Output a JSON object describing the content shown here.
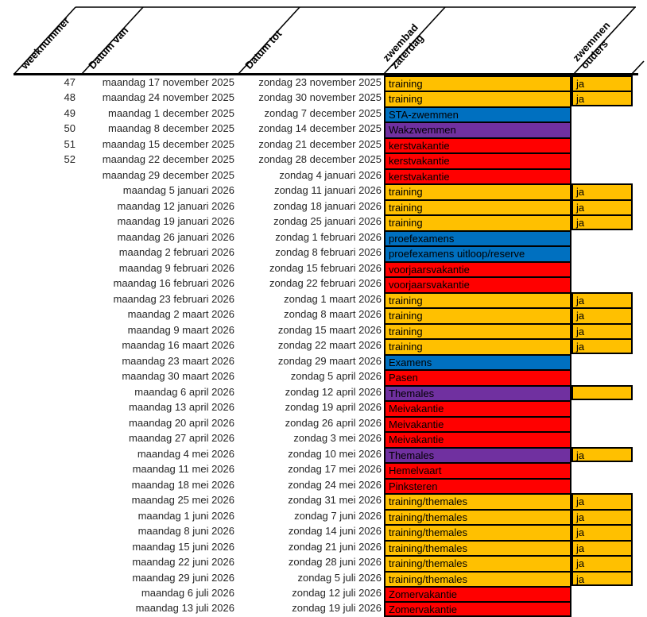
{
  "header": {
    "columns": [
      {
        "label": "weeknummer"
      },
      {
        "label": "Datum van"
      },
      {
        "label": "Datum tot"
      },
      {
        "label": "zwembad\nzaterdag"
      },
      {
        "label": "zwemmen\nouders"
      }
    ]
  },
  "colors": {
    "orange": "#FFC000",
    "blue": "#0070C0",
    "purple": "#7030A0",
    "red": "#FF0000"
  },
  "rows": [
    {
      "week": "47",
      "van": "maandag 17 november 2025",
      "tot": "zondag 23 november 2025",
      "activity": "training",
      "color": "orange",
      "ouders": "ja"
    },
    {
      "week": "48",
      "van": "maandag 24 november 2025",
      "tot": "zondag 30 november 2025",
      "activity": "training",
      "color": "orange",
      "ouders": "ja"
    },
    {
      "week": "49",
      "van": "maandag 1 december 2025",
      "tot": "zondag 7 december 2025",
      "activity": "STA-zwemmen",
      "color": "blue"
    },
    {
      "week": "50",
      "van": "maandag 8 december 2025",
      "tot": "zondag 14 december 2025",
      "activity": "Wakzwemmen",
      "color": "purple"
    },
    {
      "week": "51",
      "van": "maandag 15 december 2025",
      "tot": "zondag 21 december 2025",
      "activity": "kerstvakantie",
      "color": "red"
    },
    {
      "week": "52",
      "van": "maandag 22 december 2025",
      "tot": "zondag 28 december 2025",
      "activity": "kerstvakantie",
      "color": "red"
    },
    {
      "week": "",
      "van": "maandag 29 december 2025",
      "tot": "zondag 4 januari 2026",
      "activity": "kerstvakantie",
      "color": "red"
    },
    {
      "week": "",
      "van": "maandag 5 januari 2026",
      "tot": "zondag 11 januari 2026",
      "activity": "training",
      "color": "orange",
      "ouders": "ja"
    },
    {
      "week": "",
      "van": "maandag 12 januari 2026",
      "tot": "zondag 18 januari 2026",
      "activity": "training",
      "color": "orange",
      "ouders": "ja"
    },
    {
      "week": "",
      "van": "maandag 19 januari 2026",
      "tot": "zondag 25 januari 2026",
      "activity": "training",
      "color": "orange",
      "ouders": "ja"
    },
    {
      "week": "",
      "van": "maandag 26 januari 2026",
      "tot": "zondag 1 februari 2026",
      "activity": "proefexamens",
      "color": "blue"
    },
    {
      "week": "",
      "van": "maandag 2 februari 2026",
      "tot": "zondag 8 februari 2026",
      "activity": "proefexamens uitloop/reserve",
      "color": "blue"
    },
    {
      "week": "",
      "van": "maandag 9 februari 2026",
      "tot": "zondag 15 februari 2026",
      "activity": "voorjaarsvakantie",
      "color": "red"
    },
    {
      "week": "",
      "van": "maandag 16 februari 2026",
      "tot": "zondag 22 februari 2026",
      "activity": "voorjaarsvakantie",
      "color": "red"
    },
    {
      "week": "",
      "van": "maandag 23 februari 2026",
      "tot": "zondag 1 maart 2026",
      "activity": "training",
      "color": "orange",
      "ouders": "ja"
    },
    {
      "week": "",
      "van": "maandag 2 maart 2026",
      "tot": "zondag 8 maart 2026",
      "activity": "training",
      "color": "orange",
      "ouders": "ja"
    },
    {
      "week": "",
      "van": "maandag 9 maart 2026",
      "tot": "zondag 15 maart 2026",
      "activity": "training",
      "color": "orange",
      "ouders": "ja"
    },
    {
      "week": "",
      "van": "maandag 16 maart 2026",
      "tot": "zondag 22 maart 2026",
      "activity": "training",
      "color": "orange",
      "ouders": "ja"
    },
    {
      "week": "",
      "van": "maandag 23 maart 2026",
      "tot": "zondag 29 maart 2026",
      "activity": "Examens",
      "color": "blue"
    },
    {
      "week": "",
      "van": "maandag 30 maart 2026",
      "tot": "zondag 5 april 2026",
      "activity": "Pasen",
      "color": "red"
    },
    {
      "week": "",
      "van": "maandag 6 april 2026",
      "tot": "zondag 12 april 2026",
      "activity": "Themales",
      "color": "purple",
      "ouders": ""
    },
    {
      "week": "",
      "van": "maandag 13 april 2026",
      "tot": "zondag 19 april 2026",
      "activity": "Meivakantie",
      "color": "red"
    },
    {
      "week": "",
      "van": "maandag 20 april 2026",
      "tot": "zondag 26 april 2026",
      "activity": "Meivakantie",
      "color": "red"
    },
    {
      "week": "",
      "van": "maandag 27 april 2026",
      "tot": "zondag 3 mei 2026",
      "activity": "Meivakantie",
      "color": "red"
    },
    {
      "week": "",
      "van": "maandag 4 mei 2026",
      "tot": "zondag 10 mei 2026",
      "activity": "Themales",
      "color": "purple",
      "ouders": "ja"
    },
    {
      "week": "",
      "van": "maandag 11 mei 2026",
      "tot": "zondag 17 mei 2026",
      "activity": "Hemelvaart",
      "color": "red"
    },
    {
      "week": "",
      "van": "maandag 18 mei 2026",
      "tot": "zondag 24 mei 2026",
      "activity": "Pinksteren",
      "color": "red"
    },
    {
      "week": "",
      "van": "maandag 25 mei 2026",
      "tot": "zondag 31 mei 2026",
      "activity": "training/themales",
      "color": "orange",
      "ouders": "ja"
    },
    {
      "week": "",
      "van": "maandag 1 juni 2026",
      "tot": "zondag 7 juni 2026",
      "activity": "training/themales",
      "color": "orange",
      "ouders": "ja"
    },
    {
      "week": "",
      "van": "maandag 8 juni 2026",
      "tot": "zondag 14 juni 2026",
      "activity": "training/themales",
      "color": "orange",
      "ouders": "ja"
    },
    {
      "week": "",
      "van": "maandag 15 juni 2026",
      "tot": "zondag 21 juni 2026",
      "activity": "training/themales",
      "color": "orange",
      "ouders": "ja"
    },
    {
      "week": "",
      "van": "maandag 22 juni 2026",
      "tot": "zondag 28 juni 2026",
      "activity": "training/themales",
      "color": "orange",
      "ouders": "ja"
    },
    {
      "week": "",
      "van": "maandag 29 juni 2026",
      "tot": "zondag 5 juli 2026",
      "activity": "training/themales",
      "color": "orange",
      "ouders": "ja"
    },
    {
      "week": "",
      "van": "maandag 6 juli 2026",
      "tot": "zondag 12 juli 2026",
      "activity": "Zomervakantie",
      "color": "red"
    },
    {
      "week": "",
      "van": "maandag 13 juli 2026",
      "tot": "zondag 19 juli 2026",
      "activity": "Zomervakantie",
      "color": "red"
    }
  ]
}
